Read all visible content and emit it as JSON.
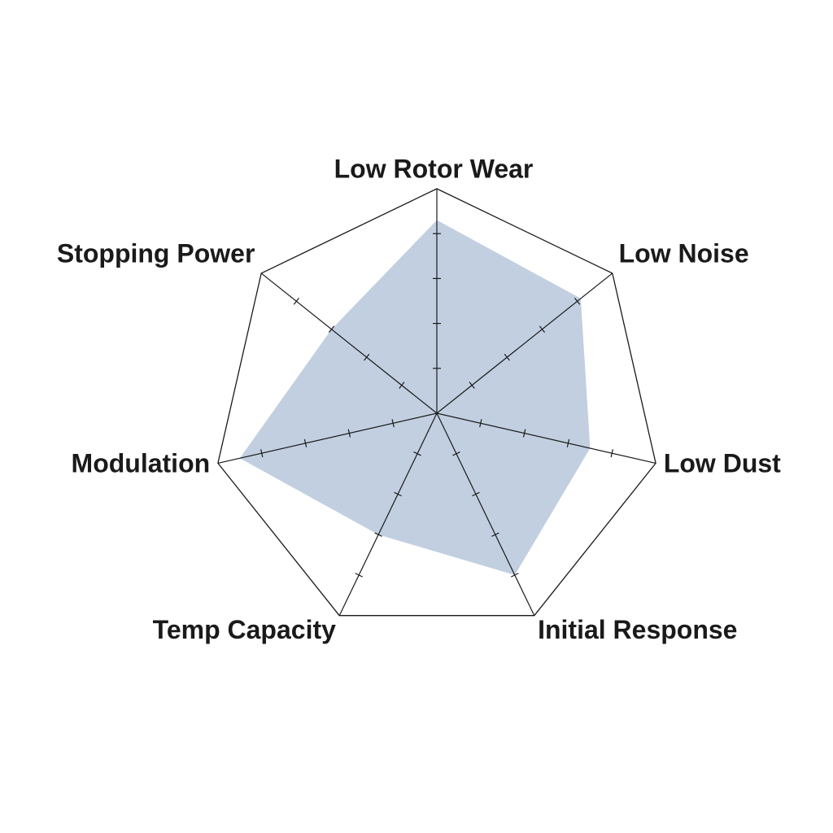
{
  "chart_data": {
    "type": "radar",
    "categories": [
      "Low Rotor Wear",
      "Low Noise",
      "Low Dust",
      "Initial Response",
      "Temp Capacity",
      "Modulation",
      "Stopping Power"
    ],
    "values": [
      4.3,
      4.1,
      3.5,
      4.0,
      3.0,
      4.5,
      3.0
    ],
    "color": "#c1cfe0",
    "rlim": [
      0,
      5
    ],
    "rticks": [
      1,
      2,
      3,
      4
    ]
  }
}
